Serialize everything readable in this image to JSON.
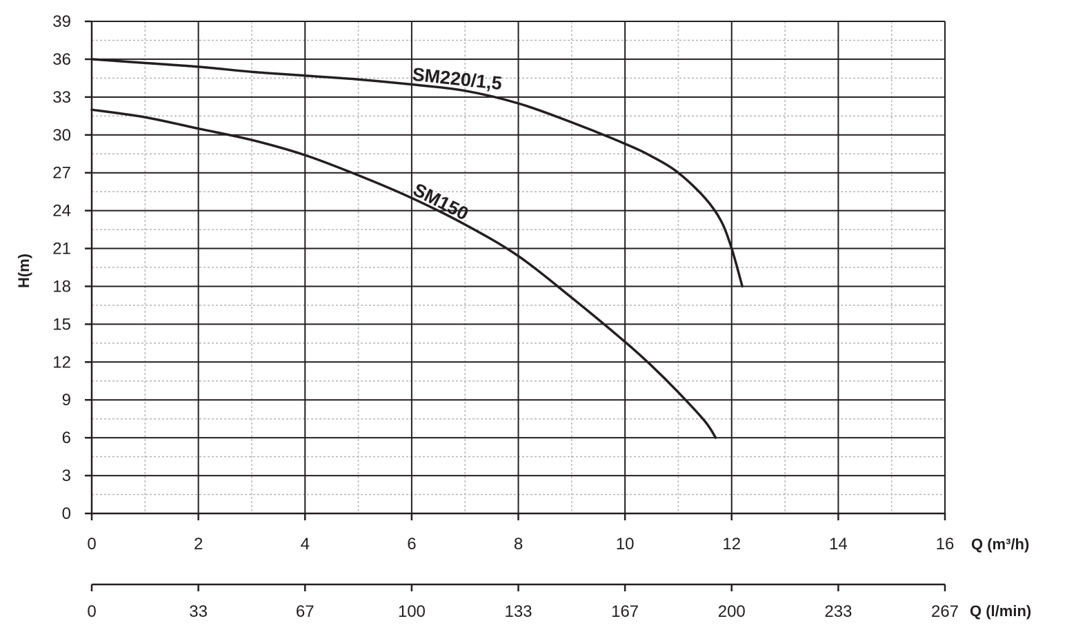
{
  "chart_data": {
    "type": "line",
    "ylabel": "H(m)",
    "xlabel": "Q (m³/h)",
    "x2label": "Q (l/min)",
    "xlim": [
      0,
      16
    ],
    "ylim": [
      0,
      39
    ],
    "y_ticks": [
      "0",
      "3",
      "6",
      "9",
      "12",
      "15",
      "18",
      "21",
      "24",
      "27",
      "30",
      "33",
      "36",
      "39"
    ],
    "x_ticks": [
      "0",
      "2",
      "4",
      "6",
      "8",
      "10",
      "12",
      "14",
      "16"
    ],
    "x2_ticks": [
      "0",
      "33",
      "67",
      "100",
      "133",
      "167",
      "200",
      "233",
      "267"
    ],
    "grid": true,
    "series": [
      {
        "name": "SM220/1,5",
        "x": [
          0,
          1,
          2,
          3,
          4,
          5,
          6,
          7,
          8,
          9,
          10,
          10.5,
          11,
          11.5,
          11.8,
          12,
          12.2
        ],
        "y": [
          36,
          35.7,
          35.4,
          35.0,
          34.7,
          34.4,
          34.0,
          33.5,
          32.5,
          31.0,
          29.3,
          28.3,
          27.0,
          25.0,
          23.2,
          21.0,
          18.0
        ]
      },
      {
        "name": "SM150",
        "x": [
          0,
          1,
          2,
          3,
          4,
          5,
          6,
          7,
          8,
          9,
          10,
          10.5,
          11,
          11.5,
          11.7
        ],
        "y": [
          32,
          31.4,
          30.5,
          29.6,
          28.4,
          26.8,
          25.0,
          22.9,
          20.4,
          17.1,
          13.6,
          11.7,
          9.6,
          7.3,
          6.0
        ]
      }
    ]
  }
}
